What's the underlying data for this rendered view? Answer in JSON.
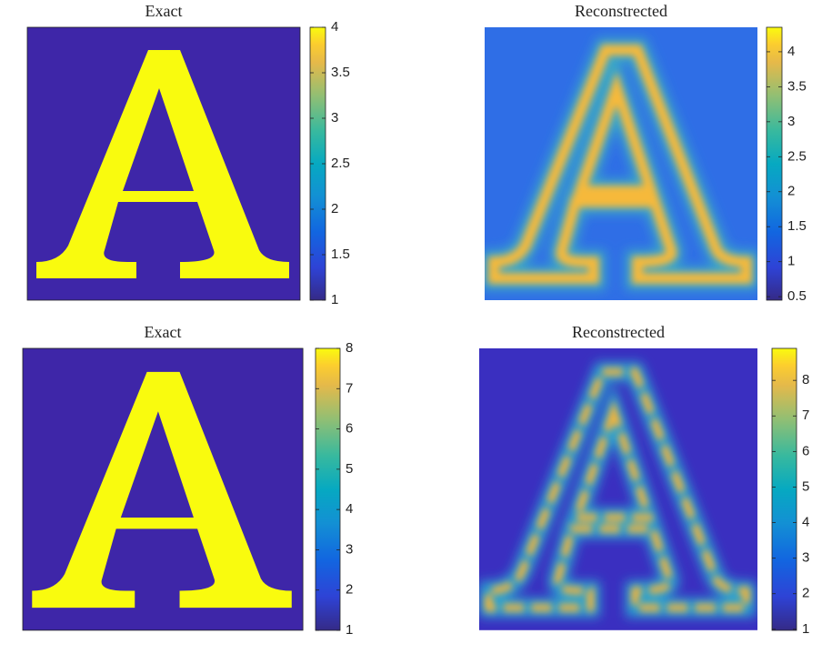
{
  "chart_data": [
    {
      "type": "image",
      "title": "Exact",
      "clim": [
        1,
        4
      ],
      "cticks": [
        1,
        1.5,
        2,
        2.5,
        3,
        3.5,
        4
      ]
    },
    {
      "type": "image",
      "title": "Reconstrected",
      "clim": [
        0.45,
        4.35
      ],
      "cticks": [
        0.5,
        1,
        1.5,
        2,
        2.5,
        3,
        3.5,
        4
      ]
    },
    {
      "type": "image",
      "title": "Exact",
      "clim": [
        1,
        8
      ],
      "cticks": [
        1,
        2,
        3,
        4,
        5,
        6,
        7,
        8
      ]
    },
    {
      "type": "image",
      "title": "Reconstrected",
      "clim": [
        0.97,
        8.9
      ],
      "cticks": [
        1,
        2,
        3,
        4,
        5,
        6,
        7,
        8
      ]
    }
  ]
}
